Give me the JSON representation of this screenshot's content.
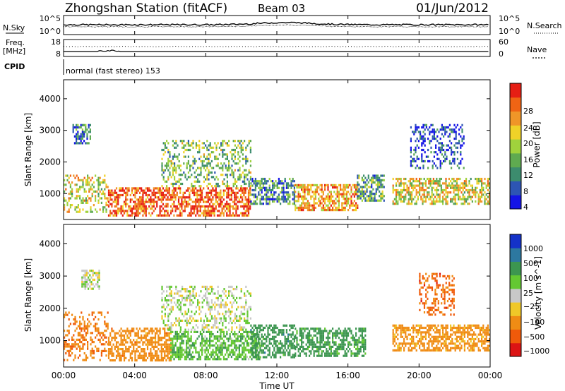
{
  "header": {
    "station": "Zhongshan Station (fitACF)",
    "beam": "Beam 03",
    "date": "01/Jun/2012"
  },
  "top_panels": {
    "nsky_label": "N.Sky",
    "nsearch_label": "N.Search",
    "nsky_ticks": [
      "10^5",
      "10^0"
    ],
    "nsearch_ticks": [
      "10^5",
      "10^0"
    ],
    "freq_label": "Freq.",
    "freq_unit": "[MHz]",
    "freq_ticks": [
      "18",
      "8"
    ],
    "nave_label": "Nave",
    "nave_ticks": [
      "60",
      "0"
    ],
    "cpid_label": "CPID",
    "cpid_text": "normal (fast stereo) 153"
  },
  "x_axis": {
    "label": "Time UT",
    "ticks": [
      "00:00",
      "04:00",
      "08:00",
      "12:00",
      "16:00",
      "20:00",
      "00:00"
    ]
  },
  "chart_data": [
    {
      "type": "heatmap",
      "name": "power",
      "ylabel": "Slant Range [km]",
      "yticks": [
        1000,
        2000,
        3000,
        4000
      ],
      "ylim": [
        180,
        4600
      ],
      "xlim_hours": [
        0,
        24
      ],
      "colorbar": {
        "label": "Power [dB]",
        "ticks": [
          "4",
          "8",
          "12",
          "16",
          "20",
          "24",
          "28"
        ],
        "colors": [
          "#1414e6",
          "#2d55b4",
          "#3c8c6e",
          "#5faa50",
          "#a0d23c",
          "#f0d228",
          "#f09628",
          "#f06414",
          "#e61e14"
        ]
      },
      "regions": [
        {
          "t0": 0.0,
          "t1": 2.5,
          "r0": 400,
          "r1": 1600,
          "value": 18
        },
        {
          "t0": 0.5,
          "t1": 1.5,
          "r0": 2600,
          "r1": 3200,
          "value": 8
        },
        {
          "t0": 2.5,
          "t1": 10.5,
          "r0": 300,
          "r1": 1200,
          "value": 26
        },
        {
          "t0": 5.5,
          "t1": 10.5,
          "r0": 1200,
          "r1": 2700,
          "value": 14
        },
        {
          "t0": 10.5,
          "t1": 13.0,
          "r0": 700,
          "r1": 1500,
          "value": 10
        },
        {
          "t0": 13.0,
          "t1": 16.5,
          "r0": 500,
          "r1": 1300,
          "value": 22
        },
        {
          "t0": 16.5,
          "t1": 18.0,
          "r0": 800,
          "r1": 1600,
          "value": 12
        },
        {
          "t0": 18.5,
          "t1": 24.0,
          "r0": 700,
          "r1": 1500,
          "value": 18
        },
        {
          "t0": 19.5,
          "t1": 22.5,
          "r0": 1800,
          "r1": 3200,
          "value": 6
        }
      ]
    },
    {
      "type": "heatmap",
      "name": "velocity",
      "ylabel": "Slant Range [km]",
      "yticks": [
        1000,
        2000,
        3000,
        4000
      ],
      "ylim": [
        180,
        4600
      ],
      "xlim_hours": [
        0,
        24
      ],
      "colorbar": {
        "label": "Velocity [m s^-1]",
        "ticks": [
          "1000",
          "500",
          "100",
          "25",
          "−25",
          "−100",
          "−500",
          "−1000"
        ],
        "colors": [
          "#1432c8",
          "#2d78a0",
          "#3c9650",
          "#64c832",
          "#c8c8c8",
          "#f0c828",
          "#f08c14",
          "#f05a0a",
          "#dc1414"
        ]
      },
      "regions": [
        {
          "t0": 0.0,
          "t1": 2.5,
          "r0": 400,
          "r1": 1900,
          "value": -400
        },
        {
          "t0": 1.0,
          "t1": 2.0,
          "r0": 2600,
          "r1": 3200,
          "value": 10
        },
        {
          "t0": 2.5,
          "t1": 6.0,
          "r0": 400,
          "r1": 1400,
          "value": -300
        },
        {
          "t0": 6.0,
          "t1": 11.0,
          "r0": 400,
          "r1": 1300,
          "value": 80
        },
        {
          "t0": 5.5,
          "t1": 10.5,
          "r0": 1300,
          "r1": 2700,
          "value": 5
        },
        {
          "t0": 10.5,
          "t1": 13.0,
          "r0": 500,
          "r1": 1500,
          "value": 300
        },
        {
          "t0": 13.0,
          "t1": 17.0,
          "r0": 500,
          "r1": 1400,
          "value": 200
        },
        {
          "t0": 18.5,
          "t1": 24.0,
          "r0": 700,
          "r1": 1500,
          "value": -200
        },
        {
          "t0": 20.0,
          "t1": 22.0,
          "r0": 1800,
          "r1": 3100,
          "value": -600
        }
      ]
    }
  ]
}
